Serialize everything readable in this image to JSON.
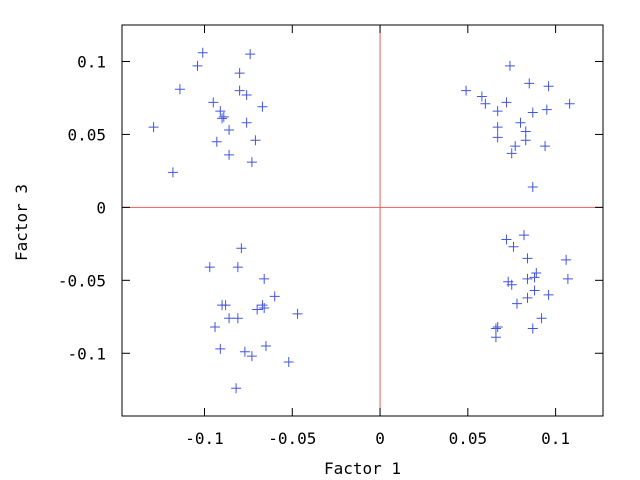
{
  "chart_data": {
    "type": "scatter",
    "xlabel": "Factor 1",
    "ylabel": "Factor 3",
    "xlim": [
      -0.147,
      0.127
    ],
    "ylim": [
      -0.143,
      0.125
    ],
    "xticks": [
      {
        "value": -0.1,
        "label": "-0.1"
      },
      {
        "value": -0.05,
        "label": "-0.05"
      },
      {
        "value": 0,
        "label": "0"
      },
      {
        "value": 0.05,
        "label": "0.05"
      },
      {
        "value": 0.1,
        "label": "0.1"
      }
    ],
    "yticks": [
      {
        "value": 0.1,
        "label": "0.1"
      },
      {
        "value": 0.05,
        "label": "0.05"
      },
      {
        "value": 0,
        "label": "0"
      },
      {
        "value": -0.05,
        "label": "-0.05"
      },
      {
        "value": -0.1,
        "label": "-0.1"
      }
    ],
    "reference_lines": {
      "x": 0,
      "y": 0,
      "color": "#e06060"
    },
    "marker": "+",
    "marker_color": "#4455dd",
    "axes_color": "#000000",
    "grid": false,
    "series": [
      {
        "points": [
          [
            -0.101,
            0.106
          ],
          [
            -0.074,
            0.105
          ],
          [
            -0.104,
            0.097
          ],
          [
            -0.08,
            0.092
          ],
          [
            -0.114,
            0.081
          ],
          [
            -0.08,
            0.08
          ],
          [
            -0.076,
            0.077
          ],
          [
            -0.095,
            0.072
          ],
          [
            -0.067,
            0.069
          ],
          [
            -0.091,
            0.066
          ],
          [
            -0.09,
            0.061
          ],
          [
            -0.089,
            0.062
          ],
          [
            -0.076,
            0.058
          ],
          [
            -0.129,
            0.055
          ],
          [
            -0.086,
            0.053
          ],
          [
            -0.071,
            0.046
          ],
          [
            -0.093,
            0.045
          ],
          [
            -0.086,
            0.036
          ],
          [
            -0.073,
            0.031
          ],
          [
            -0.118,
            0.024
          ],
          [
            0.074,
            0.097
          ],
          [
            0.085,
            0.085
          ],
          [
            0.096,
            0.083
          ],
          [
            0.049,
            0.08
          ],
          [
            0.058,
            0.076
          ],
          [
            0.06,
            0.071
          ],
          [
            0.072,
            0.072
          ],
          [
            0.108,
            0.071
          ],
          [
            0.067,
            0.066
          ],
          [
            0.095,
            0.067
          ],
          [
            0.087,
            0.065
          ],
          [
            0.08,
            0.058
          ],
          [
            0.067,
            0.055
          ],
          [
            0.083,
            0.052
          ],
          [
            0.067,
            0.048
          ],
          [
            0.083,
            0.046
          ],
          [
            0.077,
            0.042
          ],
          [
            0.094,
            0.042
          ],
          [
            0.075,
            0.037
          ],
          [
            0.087,
            0.014
          ],
          [
            -0.079,
            -0.028
          ],
          [
            -0.097,
            -0.041
          ],
          [
            -0.081,
            -0.041
          ],
          [
            -0.066,
            -0.049
          ],
          [
            -0.06,
            -0.061
          ],
          [
            -0.088,
            -0.067
          ],
          [
            -0.09,
            -0.067
          ],
          [
            -0.067,
            -0.067
          ],
          [
            -0.07,
            -0.07
          ],
          [
            -0.066,
            -0.069
          ],
          [
            -0.047,
            -0.073
          ],
          [
            -0.086,
            -0.076
          ],
          [
            -0.081,
            -0.076
          ],
          [
            -0.094,
            -0.082
          ],
          [
            -0.091,
            -0.097
          ],
          [
            -0.065,
            -0.095
          ],
          [
            -0.077,
            -0.099
          ],
          [
            -0.073,
            -0.102
          ],
          [
            -0.052,
            -0.106
          ],
          [
            -0.082,
            -0.124
          ],
          [
            0.082,
            -0.019
          ],
          [
            0.072,
            -0.022
          ],
          [
            0.076,
            -0.027
          ],
          [
            0.084,
            -0.035
          ],
          [
            0.106,
            -0.036
          ],
          [
            0.089,
            -0.045
          ],
          [
            0.088,
            -0.048
          ],
          [
            0.084,
            -0.049
          ],
          [
            0.107,
            -0.049
          ],
          [
            0.073,
            -0.051
          ],
          [
            0.075,
            -0.053
          ],
          [
            0.088,
            -0.057
          ],
          [
            0.078,
            -0.066
          ],
          [
            0.096,
            -0.06
          ],
          [
            0.084,
            -0.062
          ],
          [
            0.092,
            -0.076
          ],
          [
            0.067,
            -0.082
          ],
          [
            0.066,
            -0.083
          ],
          [
            0.087,
            -0.083
          ],
          [
            0.066,
            -0.089
          ]
        ]
      }
    ]
  }
}
